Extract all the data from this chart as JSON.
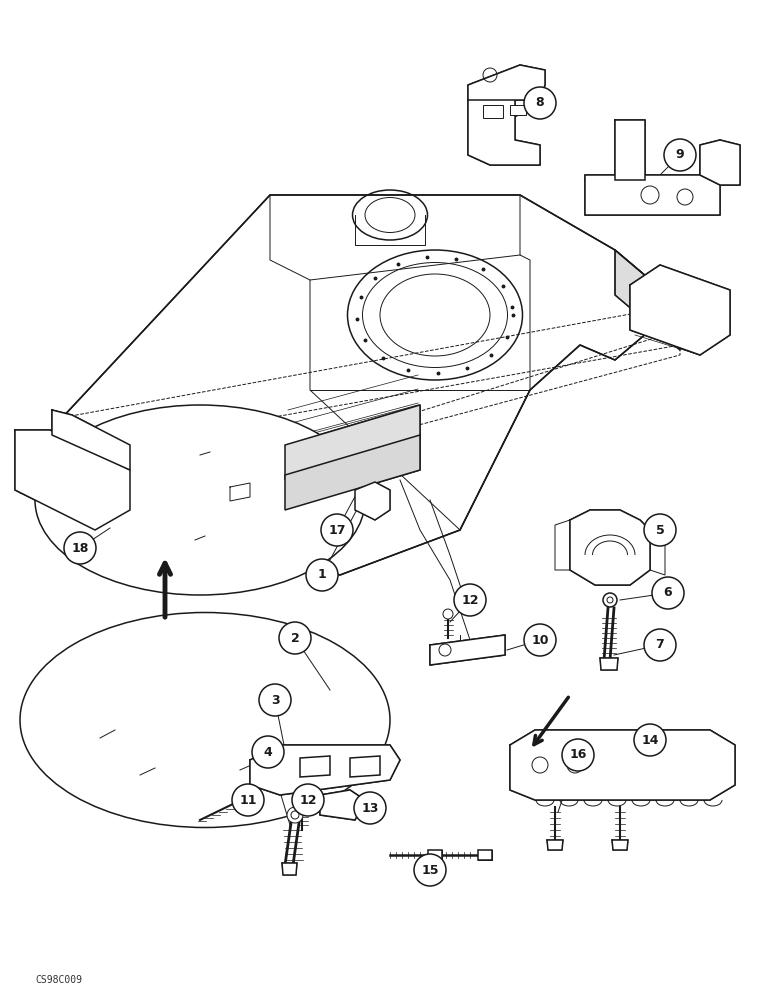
{
  "bg_color": "#ffffff",
  "line_color": "#1a1a1a",
  "fig_width": 7.72,
  "fig_height": 10.0,
  "dpi": 100,
  "watermark": "CS98C009"
}
